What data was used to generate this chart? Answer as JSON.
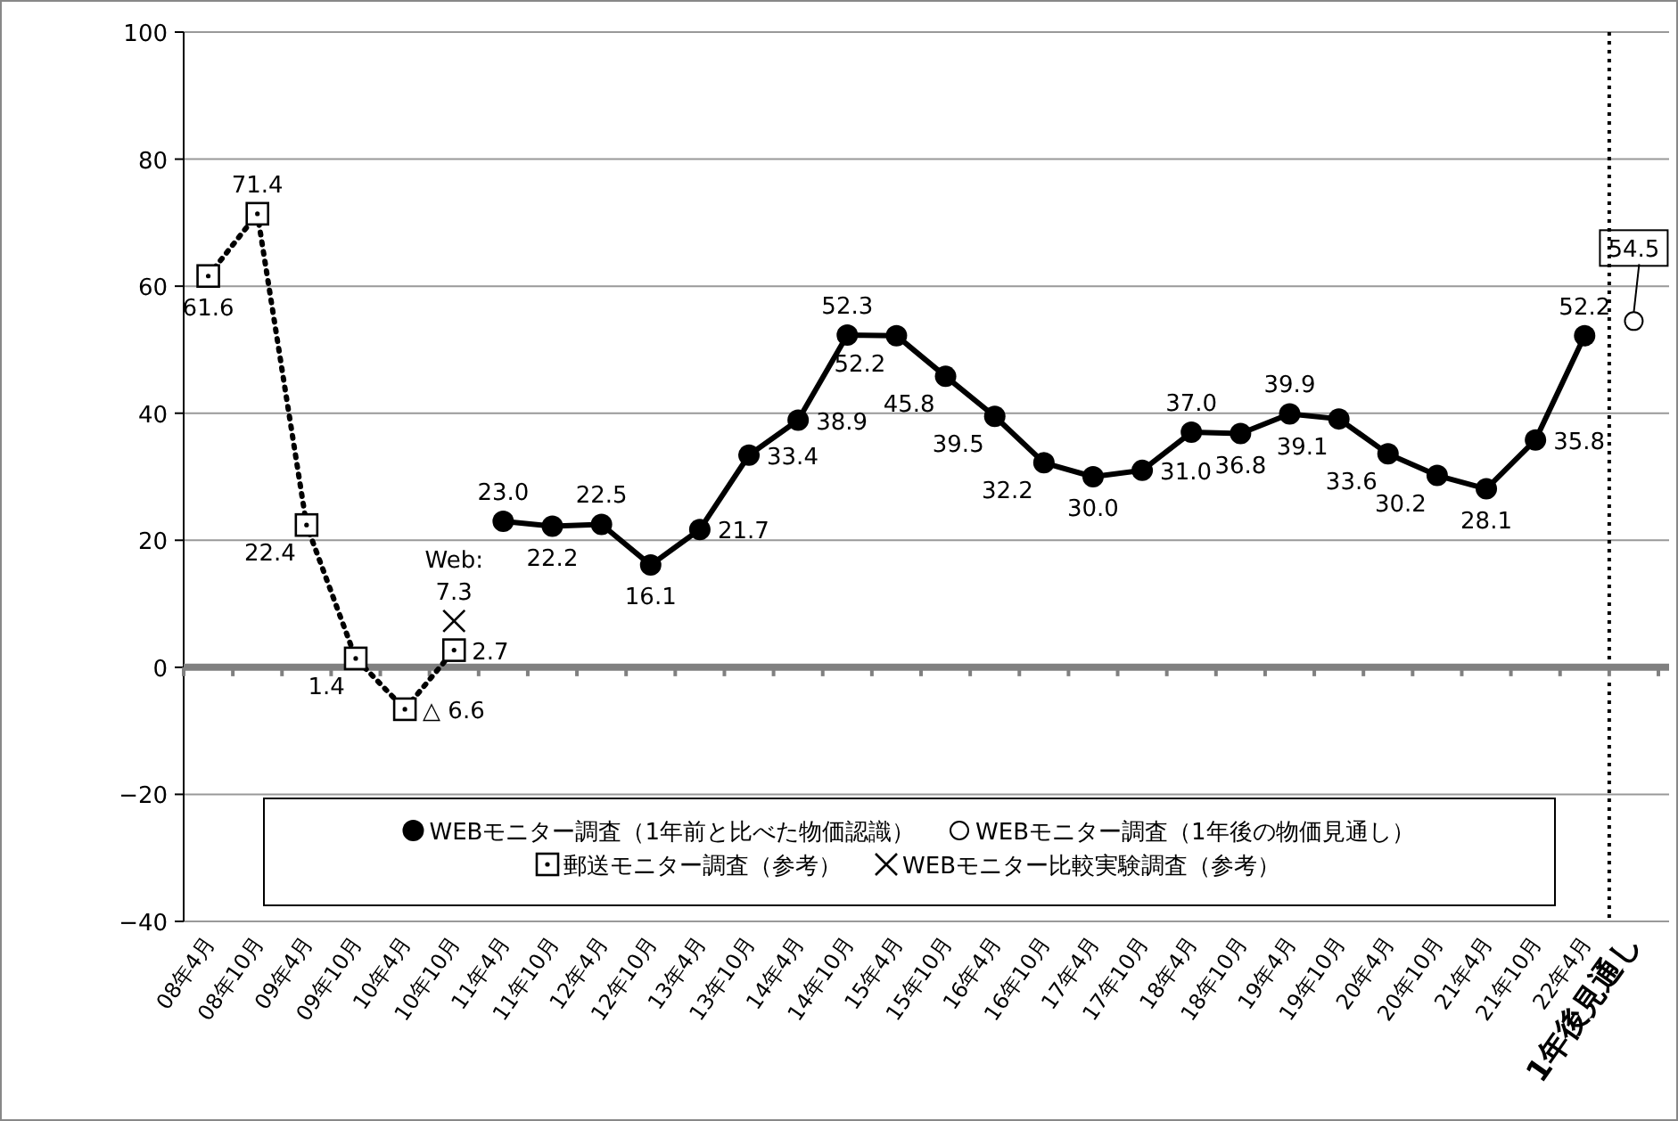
{
  "chart_data": {
    "type": "line",
    "categories": [
      "08年4月",
      "08年10月",
      "09年4月",
      "09年10月",
      "10年4月",
      "10年10月",
      "11年4月",
      "11年10月",
      "12年4月",
      "12年10月",
      "13年4月",
      "13年10月",
      "14年4月",
      "14年10月",
      "15年4月",
      "15年10月",
      "16年4月",
      "16年10月",
      "17年4月",
      "17年10月",
      "18年4月",
      "18年10月",
      "19年4月",
      "19年10月",
      "20年4月",
      "20年10月",
      "21年4月",
      "21年10月",
      "22年4月",
      "1年後見通し"
    ],
    "series": [
      {
        "name": "WEBモニター調査（1年前と比べた物価認識）",
        "color": "#000000",
        "marker": "circle",
        "line_style": "solid",
        "values": [
          null,
          null,
          null,
          null,
          null,
          null,
          23.0,
          22.2,
          22.5,
          16.1,
          21.7,
          33.4,
          38.9,
          52.3,
          52.2,
          45.8,
          39.5,
          32.2,
          30.0,
          31.0,
          37.0,
          36.8,
          39.9,
          39.1,
          33.6,
          30.2,
          28.1,
          35.8,
          52.2,
          null
        ],
        "value_labels": [
          null,
          null,
          null,
          null,
          null,
          null,
          "23.0",
          "22.2",
          "22.5",
          "16.1",
          "21.7",
          "33.4",
          "38.9",
          "52.3",
          "52.2",
          "45.8",
          "39.5",
          "32.2",
          "30.0",
          "31.0",
          "37.0",
          "36.8",
          "39.9",
          "39.1",
          "33.6",
          "30.2",
          "28.1",
          "35.8",
          "52.2",
          null
        ]
      },
      {
        "name": "WEBモニター調査（1年後の物価見通し）",
        "type": "scatter",
        "color": "#000000",
        "marker": "circle_open",
        "values": [
          null,
          null,
          null,
          null,
          null,
          null,
          null,
          null,
          null,
          null,
          null,
          null,
          null,
          null,
          null,
          null,
          null,
          null,
          null,
          null,
          null,
          null,
          null,
          null,
          null,
          null,
          null,
          null,
          null,
          54.5
        ],
        "value_labels": [
          null,
          null,
          null,
          null,
          null,
          null,
          null,
          null,
          null,
          null,
          null,
          null,
          null,
          null,
          null,
          null,
          null,
          null,
          null,
          null,
          null,
          null,
          null,
          null,
          null,
          null,
          null,
          null,
          null,
          "54.5"
        ]
      },
      {
        "name": "郵送モニター調査（参考）",
        "type": "line",
        "color": "#000000",
        "marker": "square",
        "line_style": "dotted",
        "values": [
          61.6,
          71.4,
          22.4,
          1.4,
          -6.6,
          2.7,
          null,
          null,
          null,
          null,
          null,
          null,
          null,
          null,
          null,
          null,
          null,
          null,
          null,
          null,
          null,
          null,
          null,
          null,
          null,
          null,
          null,
          null,
          null,
          null
        ],
        "value_labels": [
          "61.6",
          "71.4",
          "22.4",
          "1.4",
          null,
          "2.7",
          null,
          null,
          null,
          null,
          null,
          null,
          null,
          null,
          null,
          null,
          null,
          null,
          null,
          null,
          null,
          null,
          null,
          null,
          null,
          null,
          null,
          null,
          null,
          null
        ]
      },
      {
        "name": "WEBモニター比較実験調査（参考）",
        "type": "scatter",
        "color": "#000000",
        "marker": "cross",
        "values": [
          null,
          null,
          null,
          null,
          null,
          7.3,
          null,
          null,
          null,
          null,
          null,
          null,
          null,
          null,
          null,
          null,
          null,
          null,
          null,
          null,
          null,
          null,
          null,
          null,
          null,
          null,
          null,
          null,
          null,
          null
        ],
        "value_labels": [
          null,
          null,
          null,
          null,
          null,
          "7.3",
          null,
          null,
          null,
          null,
          null,
          null,
          null,
          null,
          null,
          null,
          null,
          null,
          null,
          null,
          null,
          null,
          null,
          null,
          null,
          null,
          null,
          null,
          null,
          null
        ]
      }
    ],
    "annotations": [
      {
        "text": "Web:",
        "x": "10年10月",
        "y": 7.3
      },
      {
        "text": "△ 6.6",
        "x": "10年4月",
        "y": -6.6
      }
    ],
    "ylim": [
      -40,
      100
    ],
    "yticks": [
      {
        "value": -40,
        "label": "−40"
      },
      {
        "value": -20,
        "label": "−20"
      },
      0,
      20,
      40,
      60,
      80,
      100
    ],
    "grid": "y",
    "legend": "bottom",
    "ref_lines": [
      {
        "axis": "y",
        "value": 0,
        "color": "#808080",
        "line_style": "solid"
      }
    ]
  }
}
